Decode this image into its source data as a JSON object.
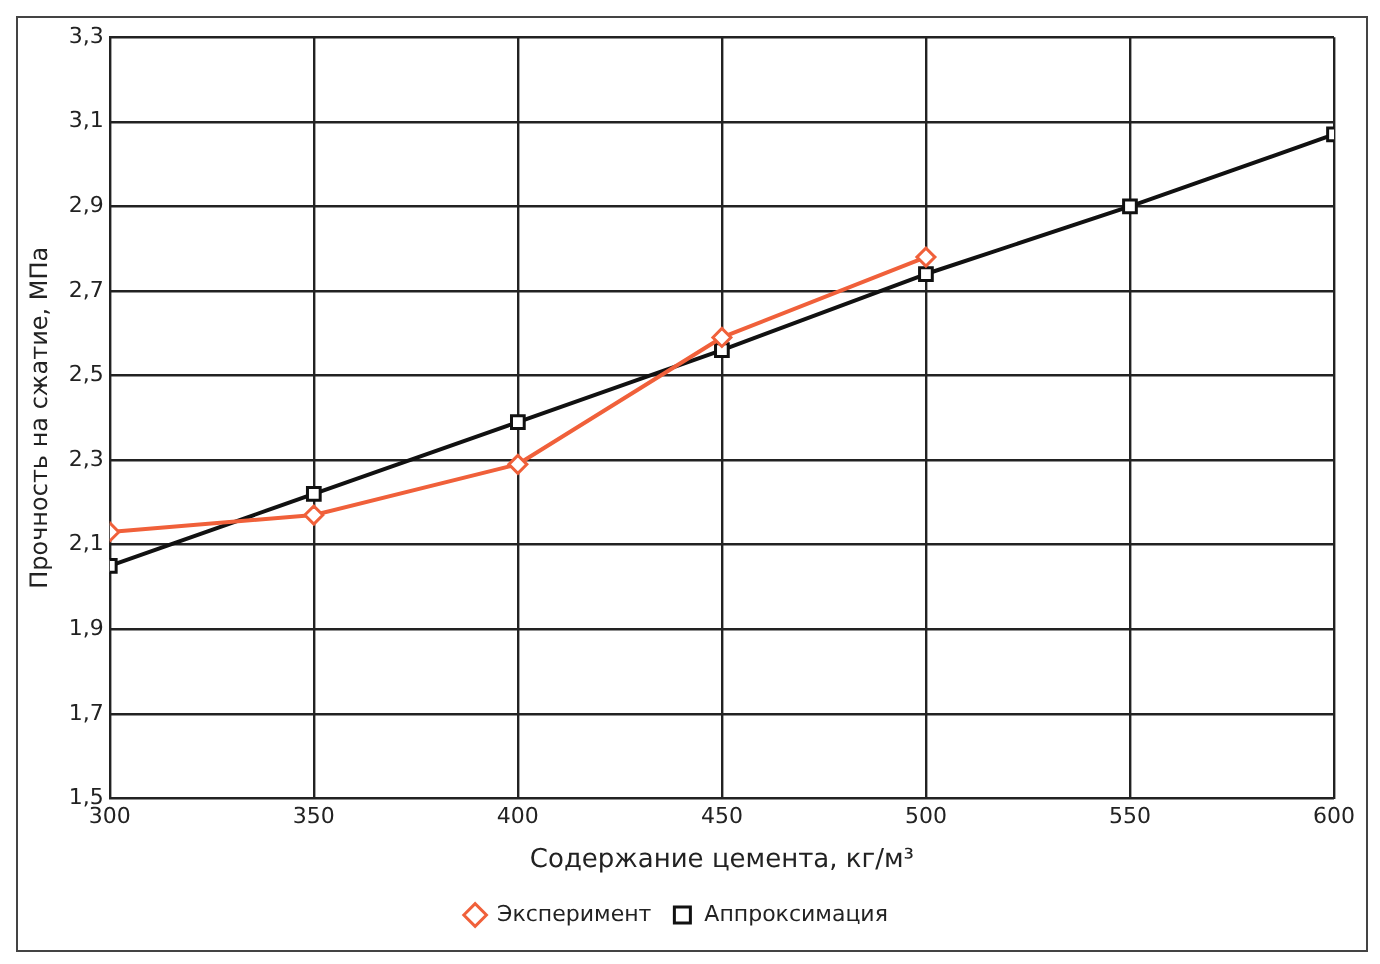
{
  "chart_data": {
    "type": "line",
    "xlabel": "Содержание цемента, кг/м³",
    "ylabel": "Прочность на сжатие, МПа",
    "x": [
      300,
      350,
      400,
      450,
      500,
      550,
      600
    ],
    "series": [
      {
        "name": "Эксперимент",
        "color": "#f0603a",
        "marker": "diamond",
        "values": [
          2.13,
          2.17,
          2.29,
          2.59,
          2.78,
          null,
          null
        ]
      },
      {
        "name": "Аппроксимация",
        "color": "#111111",
        "marker": "square",
        "values": [
          2.05,
          2.22,
          2.39,
          2.56,
          2.74,
          2.9,
          3.07
        ]
      }
    ],
    "xlim": [
      300,
      600
    ],
    "xticks": [
      300,
      350,
      400,
      450,
      500,
      550,
      600
    ],
    "ylim": [
      1.5,
      3.3
    ],
    "yticks": [
      {
        "value": 1.5,
        "label": "1,5"
      },
      {
        "value": 1.7,
        "label": "1,7"
      },
      {
        "value": 1.9,
        "label": "1,9"
      },
      {
        "value": 2.1,
        "label": "2,1"
      },
      {
        "value": 2.3,
        "label": "2,3"
      },
      {
        "value": 2.5,
        "label": "2,5"
      },
      {
        "value": 2.7,
        "label": "2,7"
      },
      {
        "value": 2.9,
        "label": "2,9"
      },
      {
        "value": 3.1,
        "label": "3,1"
      },
      {
        "value": 3.3,
        "label": "3,3"
      }
    ],
    "grid": true,
    "legend": "bottom"
  }
}
